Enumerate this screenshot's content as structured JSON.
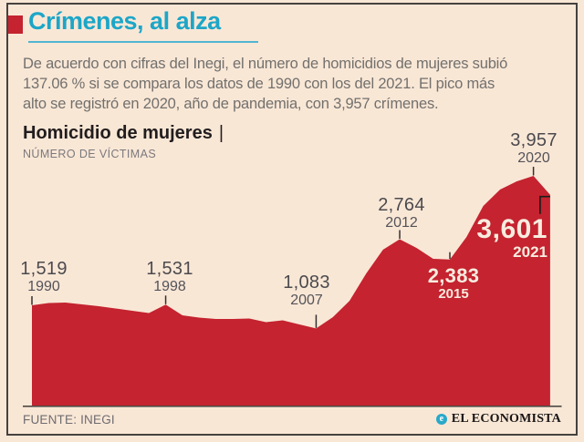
{
  "header": {
    "title": "Crímenes, al alza"
  },
  "intro": {
    "lines": [
      "De acuerdo con cifras del Inegi, el número de homicidios de mujeres subió",
      "137.06 % si se compara los datos de 1990 con los del 2021. El pico más",
      "alto se registró en 2020, año de pandemia, con 3,957 crímenes."
    ]
  },
  "chart": {
    "title": "Homicidio de mujeres",
    "title_divider": "|",
    "subtitle": "NÚMERO DE VÍCTIMAS"
  },
  "chart_data": {
    "type": "area",
    "title": "Homicidio de mujeres",
    "ylabel": "NÚMERO DE VÍCTIMAS",
    "xlabel": "",
    "x_range": [
      1990,
      2021
    ],
    "grid": false,
    "legend": false,
    "area_color": "#c4232f",
    "years": [
      1990,
      1991,
      1992,
      1993,
      1994,
      1995,
      1996,
      1997,
      1998,
      1999,
      2000,
      2001,
      2002,
      2003,
      2004,
      2005,
      2006,
      2007,
      2008,
      2009,
      2010,
      2011,
      2012,
      2013,
      2014,
      2015,
      2016,
      2017,
      2018,
      2019,
      2020,
      2021
    ],
    "values": [
      1519,
      1562,
      1571,
      1536,
      1502,
      1459,
      1416,
      1373,
      1531,
      1330,
      1287,
      1261,
      1261,
      1270,
      1201,
      1236,
      1158,
      1083,
      1296,
      1605,
      2120,
      2566,
      2764,
      2601,
      2395,
      2383,
      2807,
      3391,
      3700,
      3854,
      3957,
      3601
    ],
    "labeled_points": [
      {
        "year": "1990",
        "value": "1,519",
        "raw": 1519,
        "placement": "outside",
        "marker": "tick",
        "tick": 10
      },
      {
        "year": "1998",
        "value": "1,531",
        "raw": 1531,
        "placement": "outside",
        "marker": "tick",
        "tick": 10
      },
      {
        "year": "2007",
        "value": "1,083",
        "raw": 1083,
        "placement": "outside",
        "marker": "tick",
        "tick": 15
      },
      {
        "year": "2012",
        "value": "2,764",
        "raw": 2764,
        "placement": "outside",
        "marker": "tick",
        "tick": 10
      },
      {
        "year": "2015",
        "value": "2,383",
        "raw": 2383,
        "placement": "inside",
        "marker": "tick",
        "tick": 8
      },
      {
        "year": "2020",
        "value": "3,957",
        "raw": 3957,
        "placement": "outside",
        "marker": "tick",
        "tick": 10
      },
      {
        "year": "2021",
        "value": "3,601",
        "raw": 3601,
        "placement": "inside",
        "marker": "bracket"
      }
    ]
  },
  "footer": {
    "source": "FUENTE: INEGI",
    "brand": "EL ECONOMISTA",
    "brand_icon": "e"
  },
  "colors": {
    "accent_red": "#c4232f",
    "accent_cyan": "#1ca6c8",
    "background": "#f9e7d6",
    "label_gray": "#4b4a4e",
    "inside_label": "#f8ecdf"
  }
}
